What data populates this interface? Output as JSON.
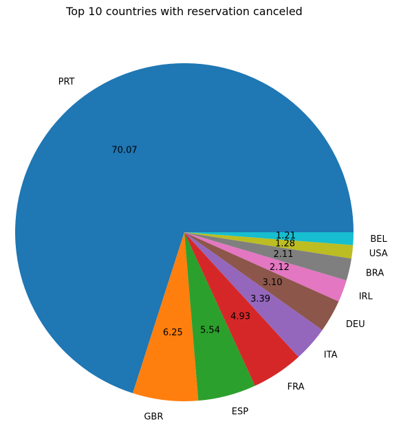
{
  "chart_data": {
    "type": "pie",
    "title": "Top 10 countries with reservation canceled",
    "labels": [
      "PRT",
      "GBR",
      "ESP",
      "FRA",
      "ITA",
      "DEU",
      "IRL",
      "BRA",
      "USA",
      "BEL"
    ],
    "values": [
      70.07,
      6.25,
      5.54,
      4.93,
      3.39,
      3.1,
      2.12,
      2.11,
      1.28,
      1.21
    ],
    "value_labels": [
      "70.07",
      "6.25",
      "5.54",
      "4.93",
      "3.39",
      "3.10",
      "2.12",
      "2.11",
      "1.28",
      "1.21"
    ],
    "colors": [
      "#1f77b4",
      "#ff7f0e",
      "#2ca02c",
      "#d62728",
      "#9467bd",
      "#8c564b",
      "#e377c2",
      "#7f7f7f",
      "#bcbd22",
      "#17becf"
    ],
    "start_angle_deg": 0,
    "direction": "counterclockwise"
  }
}
